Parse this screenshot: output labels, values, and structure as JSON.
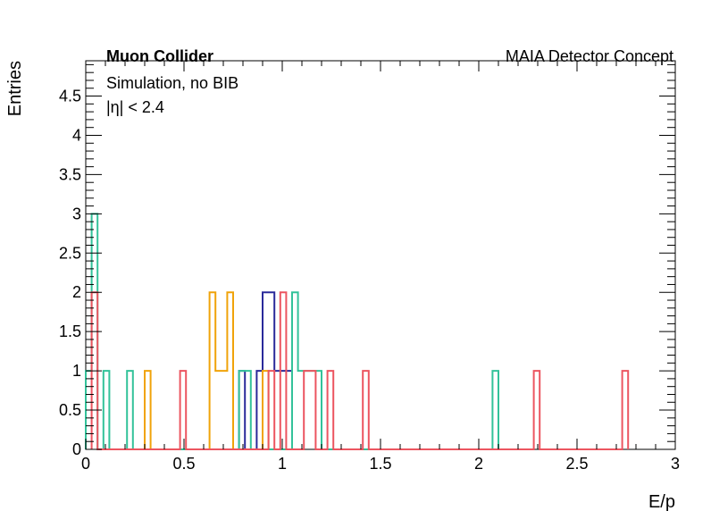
{
  "chart_data": {
    "type": "histogram",
    "xlabel": "E/p",
    "ylabel": "Entries",
    "xlim": [
      0,
      3
    ],
    "ylim": [
      0,
      4.95
    ],
    "bin_width": 0.03,
    "grid": false,
    "x_ticks": [
      "0",
      "0.5",
      "1",
      "1.5",
      "2",
      "2.5",
      "3"
    ],
    "y_ticks": [
      "0",
      "0.5",
      "1",
      "1.5",
      "2",
      "2.5",
      "3",
      "3.5",
      "4",
      "4.5"
    ],
    "annotations": {
      "experiment": "Muon Collider",
      "concept": "MAIA Detector Concept",
      "simulation": "Simulation, no BIB",
      "eta_cut": "|η| < 2.4"
    },
    "series": [
      {
        "color": "#2a2a9a",
        "bins": [
          [
            0.78,
            1
          ],
          [
            0.81,
            0
          ],
          [
            0.84,
            0
          ],
          [
            0.87,
            1
          ],
          [
            0.9,
            2
          ],
          [
            0.93,
            2
          ],
          [
            0.96,
            1
          ],
          [
            0.99,
            1
          ],
          [
            1.02,
            1
          ]
        ]
      },
      {
        "color": "#f0a30a",
        "bins": [
          [
            0.3,
            1
          ],
          [
            0.63,
            2
          ],
          [
            0.66,
            1
          ],
          [
            0.69,
            1
          ],
          [
            0.72,
            2
          ],
          [
            0.75,
            0
          ],
          [
            0.9,
            1
          ]
        ]
      },
      {
        "color": "#33c29a",
        "bins": [
          [
            0.0,
            1
          ],
          [
            0.03,
            3
          ],
          [
            0.06,
            0
          ],
          [
            0.09,
            1
          ],
          [
            0.21,
            1
          ],
          [
            0.78,
            1
          ],
          [
            0.81,
            1
          ],
          [
            1.05,
            2
          ],
          [
            1.08,
            1
          ],
          [
            1.11,
            1
          ],
          [
            1.14,
            1
          ],
          [
            1.17,
            1
          ],
          [
            2.07,
            1
          ]
        ]
      },
      {
        "color": "#ec5560",
        "bins": [
          [
            0.03,
            2
          ],
          [
            0.48,
            1
          ],
          [
            0.93,
            1
          ],
          [
            0.96,
            0
          ],
          [
            0.99,
            2
          ],
          [
            1.11,
            1
          ],
          [
            1.14,
            1
          ],
          [
            1.23,
            1
          ],
          [
            1.41,
            1
          ],
          [
            2.28,
            1
          ],
          [
            2.73,
            1
          ]
        ]
      }
    ]
  }
}
